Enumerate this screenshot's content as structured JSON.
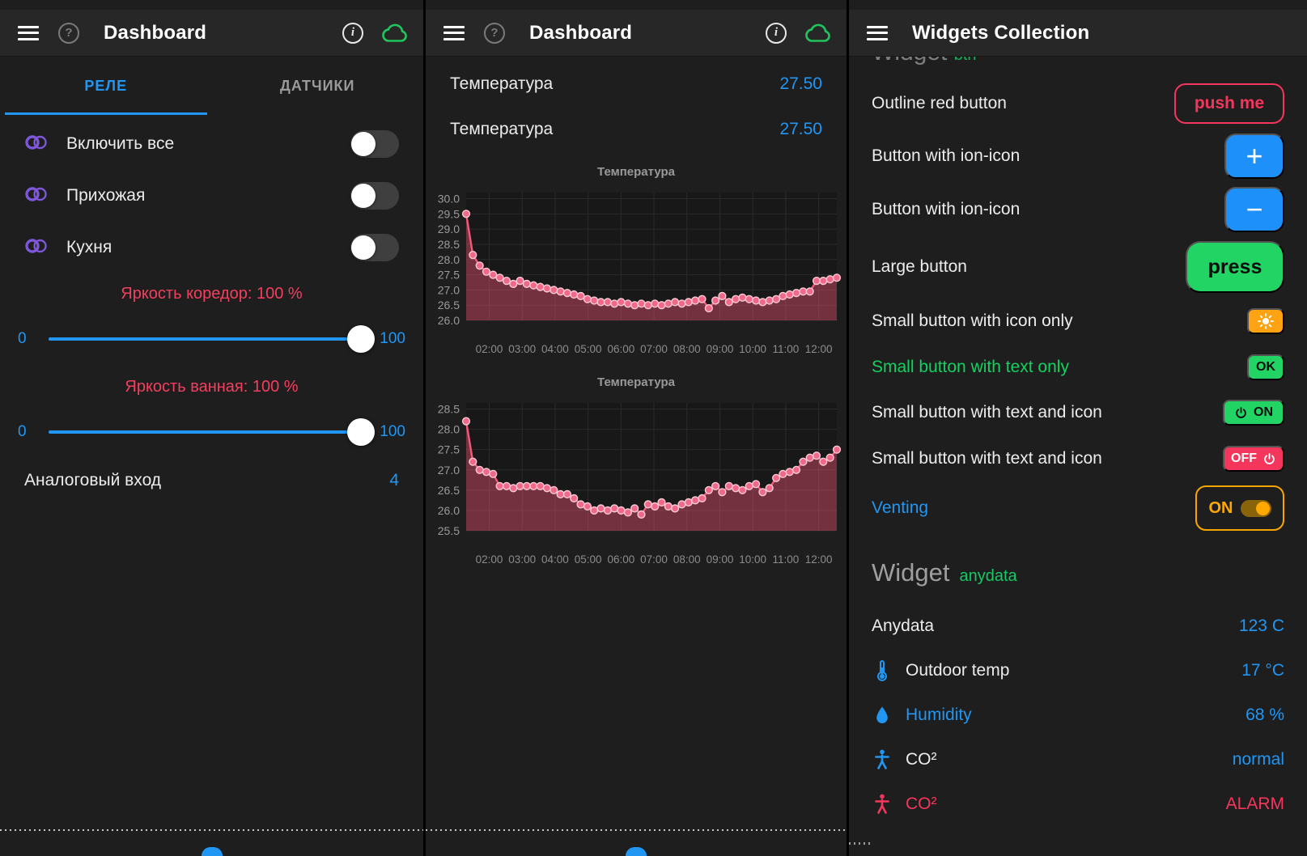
{
  "left_panel": {
    "header": {
      "title": "Dashboard",
      "icons": [
        "menu-icon",
        "help-icon",
        "info-icon",
        "cloud-icon"
      ]
    },
    "tabs": [
      {
        "label": "РЕЛЕ",
        "active": true
      },
      {
        "label": "ДАТЧИКИ",
        "active": false
      }
    ],
    "switches": [
      {
        "icon": "toggle-widget-icon",
        "label": "Включить все",
        "state": "off"
      },
      {
        "icon": "toggle-widget-icon",
        "label": "Прихожая",
        "state": "off"
      },
      {
        "icon": "toggle-widget-icon",
        "label": "Кухня",
        "state": "off"
      }
    ],
    "sliders": [
      {
        "label": "Яркость коредор: 100 %",
        "min": "0",
        "max": "100",
        "value": 100
      },
      {
        "label": "Яркость ванная: 100 %",
        "min": "0",
        "max": "100",
        "value": 100
      }
    ],
    "analog": {
      "label": "Аналоговый вход",
      "value": "4"
    }
  },
  "middle_panel": {
    "header": {
      "title": "Dashboard",
      "icons": [
        "menu-icon",
        "help-icon",
        "info-icon",
        "cloud-icon"
      ]
    },
    "readings": [
      {
        "label": "Температура",
        "value": "27.50"
      },
      {
        "label": "Температура",
        "value": "27.50"
      }
    ]
  },
  "right_panel": {
    "header": {
      "title": "Widgets Collection",
      "icons": [
        "menu-icon"
      ]
    },
    "clipped_heading": {
      "word": "Widget",
      "tag": "btn"
    },
    "rows": [
      {
        "label": "Outline red button",
        "control": "push me"
      },
      {
        "label": "Button with ion-icon",
        "control": "+"
      },
      {
        "label": "Button with ion-icon",
        "control": "−"
      },
      {
        "label": "Large button",
        "control": "press"
      },
      {
        "label": "Small button with icon only",
        "control": "sun-icon"
      },
      {
        "label": "Small button with text only",
        "control": "OK"
      },
      {
        "label": "Small button with text and icon",
        "control": "ON",
        "control_icon": "power-icon"
      },
      {
        "label": "Small button with text and icon",
        "control": "OFF",
        "control_icon": "power-icon"
      },
      {
        "label": "Venting",
        "control": "ON",
        "control_icon": "toggle-on"
      }
    ],
    "section": {
      "title": "Widget",
      "subtitle": "anydata"
    },
    "data_rows": [
      {
        "icon": null,
        "label": "Anydata",
        "value": "123 C"
      },
      {
        "icon": "thermometer-icon",
        "label": "Outdoor temp",
        "value": "17 °C"
      },
      {
        "icon": "droplet-icon",
        "label": "Humidity",
        "value": "68 %"
      },
      {
        "icon": "person-icon",
        "label": "CO²",
        "value": "normal"
      },
      {
        "icon": "person-icon",
        "label": "CO²",
        "value": "ALARM"
      }
    ]
  },
  "colors": {
    "accent_blue": "#2196f3",
    "accent_red": "#f5365c",
    "accent_green": "#21d463",
    "accent_orange": "#ffa313",
    "accent_amber": "#f7a600",
    "accent_purple": "#7d57d8",
    "chart_line": "#f4587a",
    "cloud_green": "#21c45d"
  },
  "chart_data": [
    {
      "type": "line",
      "title": "Температура",
      "x_ticks": [
        "02:00",
        "03:00",
        "04:00",
        "05:00",
        "06:00",
        "07:00",
        "08:00",
        "09:00",
        "10:00",
        "11:00",
        "12:00"
      ],
      "x_range_hours": [
        1.3,
        12.55
      ],
      "y_ticks": [
        26.0,
        26.5,
        27.0,
        27.5,
        28.0,
        28.5,
        29.0,
        29.5,
        30.0
      ],
      "ylim": [
        26.0,
        30.2
      ],
      "grid": true,
      "legend": "none",
      "values": [
        29.5,
        28.15,
        27.8,
        27.6,
        27.5,
        27.4,
        27.3,
        27.2,
        27.3,
        27.2,
        27.15,
        27.1,
        27.05,
        27.0,
        26.95,
        26.9,
        26.85,
        26.8,
        26.7,
        26.65,
        26.6,
        26.6,
        26.55,
        26.6,
        26.55,
        26.5,
        26.55,
        26.5,
        26.55,
        26.5,
        26.55,
        26.6,
        26.55,
        26.6,
        26.65,
        26.7,
        26.4,
        26.65,
        26.8,
        26.6,
        26.7,
        26.75,
        26.7,
        26.65,
        26.6,
        26.65,
        26.7,
        26.8,
        26.85,
        26.9,
        26.95,
        26.95,
        27.3,
        27.3,
        27.35,
        27.4
      ]
    },
    {
      "type": "line",
      "title": "Температура",
      "x_ticks": [
        "02:00",
        "03:00",
        "04:00",
        "05:00",
        "06:00",
        "07:00",
        "08:00",
        "09:00",
        "10:00",
        "11:00",
        "12:00"
      ],
      "x_range_hours": [
        1.3,
        12.55
      ],
      "y_ticks": [
        25.5,
        26.0,
        26.5,
        27.0,
        27.5,
        28.0,
        28.5
      ],
      "ylim": [
        25.5,
        28.65
      ],
      "grid": true,
      "legend": "none",
      "values": [
        28.2,
        27.2,
        27.0,
        26.95,
        26.9,
        26.6,
        26.6,
        26.55,
        26.6,
        26.6,
        26.6,
        26.6,
        26.55,
        26.5,
        26.4,
        26.4,
        26.3,
        26.15,
        26.1,
        26.0,
        26.05,
        26.0,
        26.05,
        26.0,
        25.95,
        26.05,
        25.9,
        26.15,
        26.1,
        26.2,
        26.1,
        26.05,
        26.15,
        26.2,
        26.25,
        26.3,
        26.5,
        26.6,
        26.45,
        26.6,
        26.55,
        26.5,
        26.6,
        26.65,
        26.45,
        26.55,
        26.8,
        26.9,
        26.95,
        27.0,
        27.2,
        27.3,
        27.35,
        27.2,
        27.3,
        27.5
      ]
    }
  ]
}
